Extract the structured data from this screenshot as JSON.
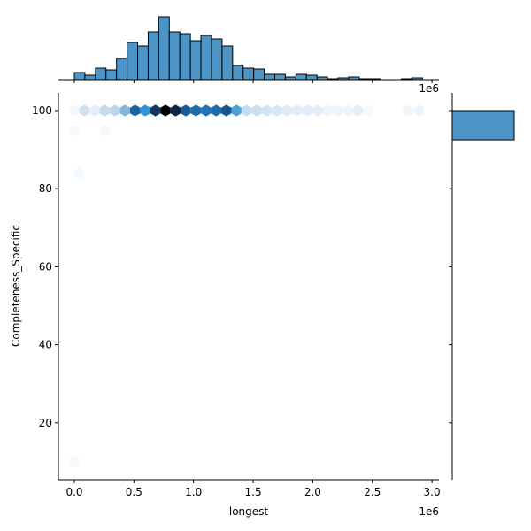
{
  "chart_data": {
    "type": "hexbin",
    "plot_kind": "jointplot",
    "title": "",
    "xlabel": "longest",
    "ylabel": "Completeness_Specific",
    "x_offset_label": "1e6",
    "top_offset_label": "1e6",
    "xlim": [
      -0.13,
      3.06
    ],
    "ylim": [
      5.5,
      104.5
    ],
    "x_ticks": [
      0.0,
      0.5,
      1.0,
      1.5,
      2.0,
      2.5,
      3.0
    ],
    "x_tick_labels": [
      "0.0",
      "0.5",
      "1.0",
      "1.5",
      "2.0",
      "2.5",
      "3.0"
    ],
    "y_ticks": [
      20,
      40,
      60,
      80,
      100
    ],
    "y_tick_labels": [
      "20",
      "40",
      "60",
      "80",
      "100"
    ],
    "grid": false,
    "colormap": "Blues",
    "hexbins": {
      "note": "x in units of 1e6, y in Completeness_Specific units, intensity 0-1 relative density",
      "row_100": {
        "y": 100,
        "x": [
          0.0,
          0.085,
          0.17,
          0.255,
          0.34,
          0.425,
          0.51,
          0.595,
          0.68,
          0.765,
          0.85,
          0.935,
          1.02,
          1.105,
          1.19,
          1.275,
          1.36,
          1.445,
          1.53,
          1.615,
          1.7,
          1.785,
          1.87,
          1.955,
          2.04,
          2.125,
          2.21,
          2.295,
          2.38,
          2.465,
          2.8,
          2.89
        ],
        "intensity": [
          0.03,
          0.25,
          0.12,
          0.3,
          0.32,
          0.42,
          0.75,
          0.55,
          0.88,
          1.0,
          0.92,
          0.78,
          0.72,
          0.7,
          0.72,
          0.8,
          0.5,
          0.3,
          0.28,
          0.22,
          0.2,
          0.15,
          0.14,
          0.13,
          0.13,
          0.06,
          0.06,
          0.06,
          0.12,
          0.02,
          0.05,
          0.06
        ]
      },
      "sparse": [
        {
          "x": 0.0,
          "y": 95,
          "intensity": 0.02
        },
        {
          "x": 0.255,
          "y": 95,
          "intensity": 0.02
        },
        {
          "x": 0.04,
          "y": 84,
          "intensity": 0.02
        },
        {
          "x": 0.0,
          "y": 10,
          "intensity": 0.02
        }
      ]
    },
    "top_histogram": {
      "bin_start": 0.0,
      "bin_width": 0.0885,
      "values": [
        8,
        5,
        13,
        11,
        24,
        42,
        38,
        54,
        71,
        54,
        52,
        44,
        50,
        46,
        38,
        16,
        13,
        12,
        6,
        6,
        3,
        6,
        5,
        3,
        1,
        2,
        3,
        1,
        1,
        0,
        0,
        1,
        2
      ],
      "color": "#4c95c6",
      "edge_color": "#000000"
    },
    "right_histogram": {
      "bins": [
        {
          "y_from": 92.5,
          "y_to": 100,
          "value": 70
        }
      ],
      "color": "#4c95c6",
      "edge_color": "#000000"
    }
  }
}
